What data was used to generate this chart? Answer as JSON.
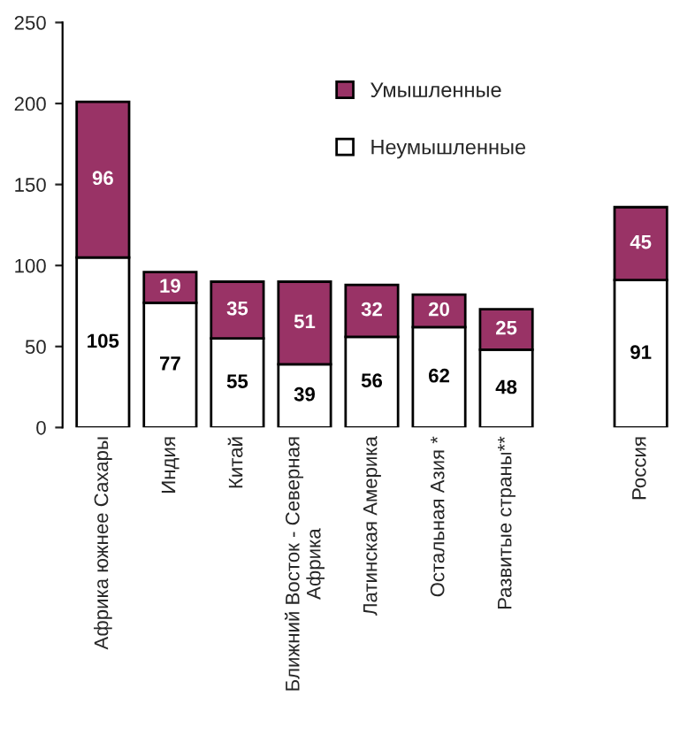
{
  "chart_data": {
    "type": "bar",
    "stacked": true,
    "data_labels": true,
    "legend": "top right",
    "grid": false,
    "categories": [
      "Африка южнее Сахары",
      "Индия",
      "Китай",
      "Ближний Восток - Северная Африка",
      "Латинская Америка",
      "Остальная Азия *",
      "Развитые страны**",
      null,
      "Россия"
    ],
    "series": [
      {
        "name": "Неумышленные",
        "color": "#ffffff",
        "values": [
          105,
          77,
          55,
          39,
          56,
          62,
          48,
          null,
          91
        ]
      },
      {
        "name": "Умышленные",
        "color": "#993366",
        "values": [
          96,
          19,
          35,
          51,
          32,
          20,
          25,
          null,
          45
        ]
      }
    ],
    "ylim": [
      0,
      250
    ],
    "yticks": [
      0,
      50,
      100,
      150,
      200,
      250
    ]
  }
}
